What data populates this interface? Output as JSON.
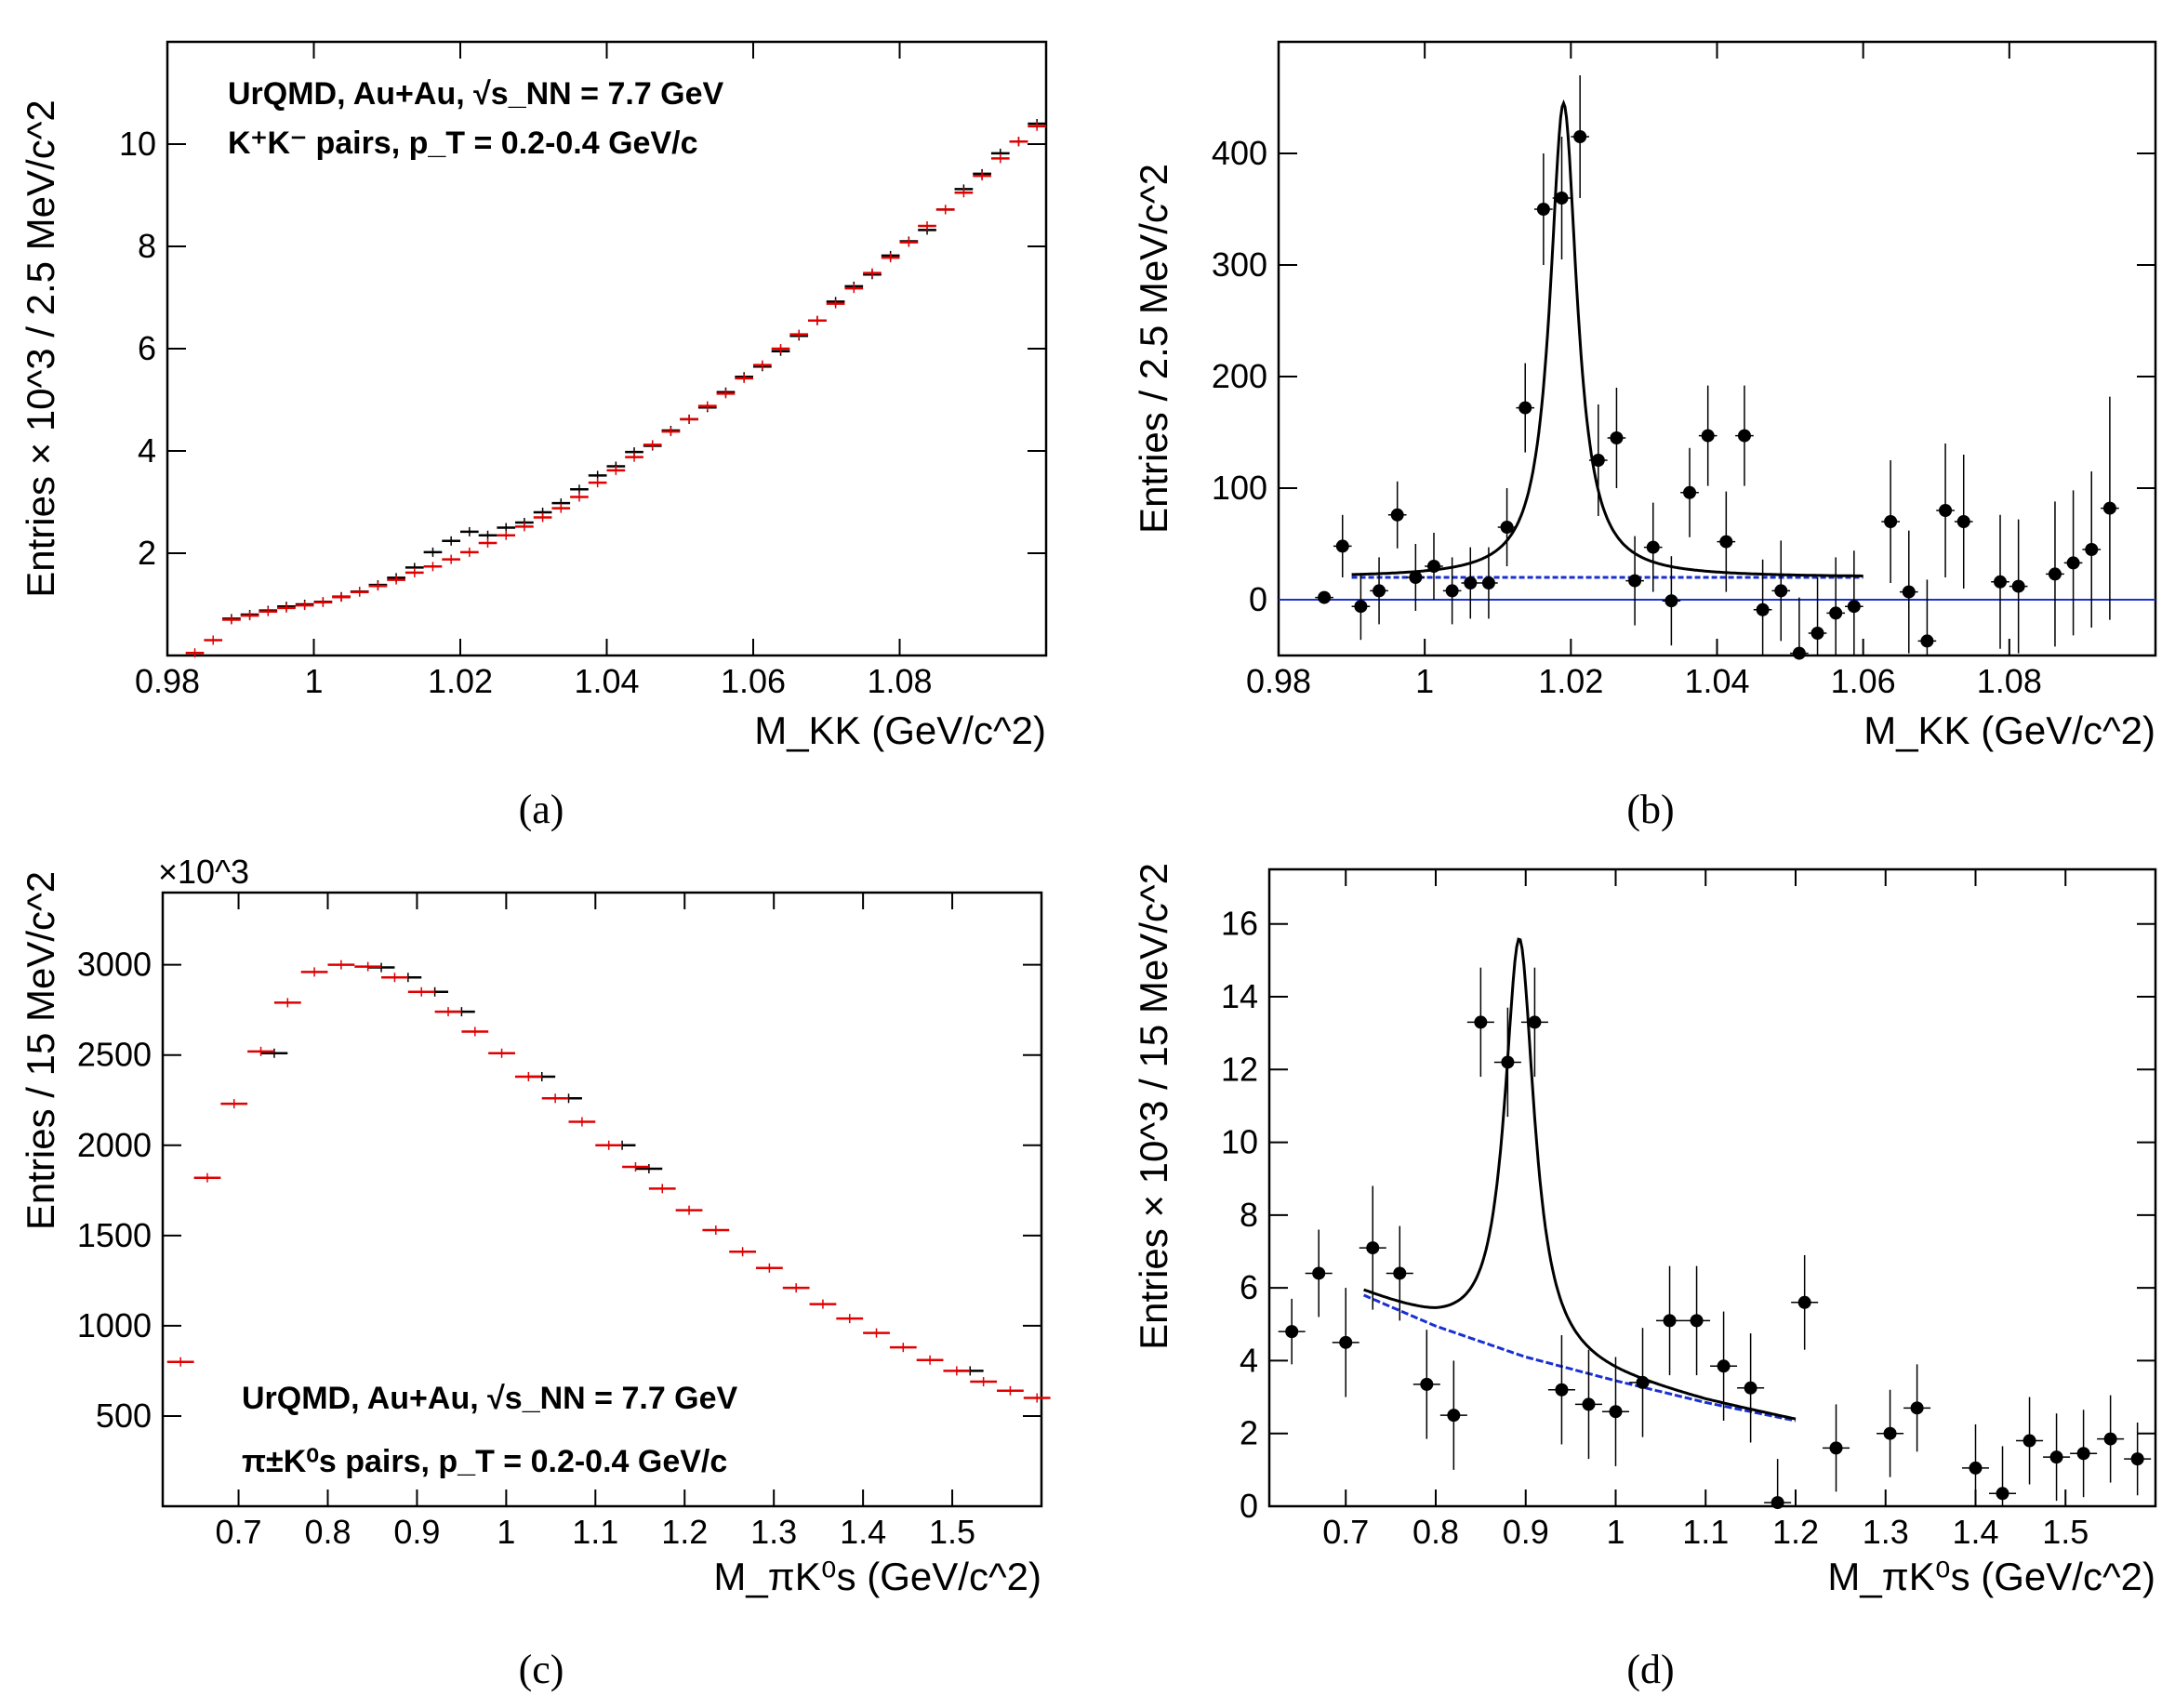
{
  "chart_data": [
    {
      "id": "a",
      "type": "scatter",
      "caption": "(a)",
      "title": "",
      "xlabel": "M_KK (GeV/c^2)",
      "ylabel": "Entries × 10^3 / 2.5 MeV/c^2",
      "xlim": [
        0.98,
        1.1
      ],
      "ylim": [
        0,
        12.0
      ],
      "xticks": [
        0.98,
        1,
        1.02,
        1.04,
        1.06,
        1.08
      ],
      "xtick_labels": [
        "0.98",
        "1",
        "1.02",
        "1.04",
        "1.06",
        "1.08"
      ],
      "yticks": [
        2,
        4,
        6,
        8,
        10
      ],
      "ytick_labels": [
        "2",
        "4",
        "6",
        "8",
        "10"
      ],
      "annotations": [
        "UrQMD, Au+Au, √s_NN = 7.7 GeV",
        "K⁺K⁻ pairs, p_T = 0.2-0.4 GeV/c"
      ],
      "bin_width": 0.0025,
      "series": [
        {
          "name": "same-event",
          "color": "#000000",
          "x": [
            0.98875,
            0.99125,
            0.99375,
            0.99625,
            0.99875,
            1.00125,
            1.00375,
            1.00625,
            1.00875,
            1.01125,
            1.01375,
            1.01625,
            1.01875,
            1.02125,
            1.02375,
            1.02625,
            1.02875,
            1.03125,
            1.03375,
            1.03625,
            1.03875,
            1.04125,
            1.04375,
            1.04625,
            1.04875,
            1.05125,
            1.05375,
            1.05625,
            1.05875,
            1.06125,
            1.06375,
            1.06625,
            1.06875,
            1.07125,
            1.07375,
            1.07625,
            1.07875,
            1.08125,
            1.08375,
            1.08625,
            1.08875,
            1.09125,
            1.09375,
            1.09625,
            1.09875
          ],
          "y": [
            0.72,
            0.8,
            0.88,
            0.96,
            1.0,
            1.05,
            1.15,
            1.25,
            1.38,
            1.52,
            1.72,
            2.02,
            2.24,
            2.42,
            2.35,
            2.5,
            2.6,
            2.8,
            2.98,
            3.25,
            3.52,
            3.7,
            3.98,
            4.1,
            4.4,
            4.62,
            4.85,
            5.15,
            5.45,
            5.65,
            5.95,
            6.25,
            6.55,
            6.92,
            7.22,
            7.45,
            7.82,
            8.1,
            8.32,
            8.72,
            9.12,
            9.42,
            9.82,
            10.05,
            10.4
          ]
        },
        {
          "name": "mixed-event",
          "color": "#e00000",
          "x": [
            0.98375,
            0.98625,
            0.98875,
            0.99125,
            0.99375,
            0.99625,
            0.99875,
            1.00125,
            1.00375,
            1.00625,
            1.00875,
            1.01125,
            1.01375,
            1.01625,
            1.01875,
            1.02125,
            1.02375,
            1.02625,
            1.02875,
            1.03125,
            1.03375,
            1.03625,
            1.03875,
            1.04125,
            1.04375,
            1.04625,
            1.04875,
            1.05125,
            1.05375,
            1.05625,
            1.05875,
            1.06125,
            1.06375,
            1.06625,
            1.06875,
            1.07125,
            1.07375,
            1.07625,
            1.07875,
            1.08125,
            1.08375,
            1.08625,
            1.08875,
            1.09125,
            1.09375,
            1.09625,
            1.09875
          ],
          "y": [
            0.05,
            0.3,
            0.7,
            0.78,
            0.86,
            0.93,
            0.98,
            1.04,
            1.14,
            1.24,
            1.36,
            1.48,
            1.62,
            1.74,
            1.88,
            2.02,
            2.2,
            2.35,
            2.52,
            2.7,
            2.88,
            3.1,
            3.38,
            3.62,
            3.88,
            4.12,
            4.38,
            4.62,
            4.88,
            5.12,
            5.42,
            5.68,
            6.0,
            6.28,
            6.55,
            6.88,
            7.18,
            7.48,
            7.78,
            8.08,
            8.4,
            8.72,
            9.05,
            9.38,
            9.72,
            10.05,
            10.35
          ]
        }
      ]
    },
    {
      "id": "b",
      "type": "scatter",
      "caption": "(b)",
      "title": "",
      "xlabel": "M_KK (GeV/c^2)",
      "ylabel": "Entries / 2.5 MeV/c^2",
      "xlim": [
        0.98,
        1.1
      ],
      "ylim": [
        -50,
        500
      ],
      "xticks": [
        0.98,
        1,
        1.02,
        1.04,
        1.06,
        1.08
      ],
      "xtick_labels": [
        "0.98",
        "1",
        "1.02",
        "1.04",
        "1.06",
        "1.08"
      ],
      "yticks": [
        0,
        100,
        200,
        300,
        400
      ],
      "ytick_labels": [
        "0",
        "100",
        "200",
        "300",
        "400"
      ],
      "bin_width": 0.0025,
      "points": {
        "x": [
          0.98625,
          0.98875,
          0.99125,
          0.99375,
          0.99625,
          0.99875,
          1.00125,
          1.00375,
          1.00625,
          1.00875,
          1.01125,
          1.01375,
          1.01625,
          1.01875,
          1.02125,
          1.02375,
          1.02625,
          1.02875,
          1.03125,
          1.03375,
          1.03625,
          1.03875,
          1.04125,
          1.04375,
          1.04625,
          1.04875,
          1.05125,
          1.05375,
          1.05625,
          1.05875,
          1.06375,
          1.06625,
          1.06875,
          1.07125,
          1.07375,
          1.07875,
          1.08125,
          1.08625,
          1.08875,
          1.09125,
          1.09375
        ],
        "y": [
          2,
          48,
          -6,
          8,
          76,
          20,
          30,
          8,
          15,
          15,
          65,
          172,
          350,
          360,
          415,
          125,
          145,
          17,
          47,
          -1,
          96,
          147,
          52,
          147,
          -9,
          8,
          -48,
          -30,
          -12,
          -6,
          70,
          7,
          -37,
          80,
          70,
          16,
          12,
          23,
          33,
          45,
          82
        ],
        "err": [
          0,
          28,
          30,
          30,
          30,
          30,
          30,
          30,
          32,
          32,
          35,
          40,
          50,
          55,
          55,
          50,
          45,
          40,
          40,
          40,
          40,
          45,
          45,
          45,
          45,
          45,
          50,
          50,
          50,
          50,
          55,
          55,
          55,
          60,
          60,
          60,
          60,
          65,
          65,
          70,
          100
        ]
      },
      "fit": {
        "type": "breit-wigner + linear",
        "peak_mass": 1.019,
        "width": 0.0045,
        "background": 20,
        "range": [
          0.99,
          1.06
        ],
        "peak_height": 445
      },
      "background_line": {
        "color": "#1a2fd1",
        "value": 20,
        "range": [
          0.99,
          1.06
        ]
      },
      "zero_line": {
        "color": "#1a2fd1",
        "value": 0
      }
    },
    {
      "id": "c",
      "type": "scatter",
      "caption": "(c)",
      "title": "",
      "xlabel": "M_πK⁰s (GeV/c^2)",
      "ylabel": "Entries / 15 MeV/c^2",
      "multiplier": "×10^3",
      "xlim": [
        0.615,
        1.6
      ],
      "ylim": [
        0,
        3400
      ],
      "xticks": [
        0.7,
        0.8,
        0.9,
        1,
        1.1,
        1.2,
        1.3,
        1.4,
        1.5
      ],
      "xtick_labels": [
        "0.7",
        "0.8",
        "0.9",
        "1",
        "1.1",
        "1.2",
        "1.3",
        "1.4",
        "1.5"
      ],
      "yticks": [
        500,
        1000,
        1500,
        2000,
        2500,
        3000
      ],
      "ytick_labels": [
        "500",
        "1000",
        "1500",
        "2000",
        "2500",
        "3000"
      ],
      "annotations": [
        "UrQMD, Au+Au, √s_NN = 7.7 GeV",
        "π±K⁰s pairs, p_T = 0.2-0.4 GeV/c"
      ],
      "bin_width": 0.03,
      "series": [
        {
          "name": "same-event",
          "color": "#000000",
          "x": [
            0.74,
            0.86,
            0.89,
            0.92,
            0.95,
            1.04,
            1.07,
            1.13,
            1.16,
            1.52
          ],
          "y": [
            2510,
            2985,
            2930,
            2850,
            2740,
            2380,
            2260,
            2000,
            1870,
            750
          ]
        },
        {
          "name": "mixed-event",
          "color": "#e00000",
          "x": [
            0.635,
            0.665,
            0.695,
            0.725,
            0.755,
            0.785,
            0.815,
            0.845,
            0.875,
            0.905,
            0.935,
            0.965,
            0.995,
            1.025,
            1.055,
            1.085,
            1.115,
            1.145,
            1.175,
            1.205,
            1.235,
            1.265,
            1.295,
            1.325,
            1.355,
            1.385,
            1.415,
            1.445,
            1.475,
            1.505,
            1.535,
            1.565,
            1.595
          ],
          "y": [
            800,
            1820,
            2230,
            2520,
            2790,
            2960,
            3000,
            2990,
            2930,
            2850,
            2740,
            2630,
            2510,
            2380,
            2260,
            2130,
            2000,
            1880,
            1760,
            1640,
            1530,
            1410,
            1320,
            1210,
            1120,
            1040,
            960,
            880,
            810,
            750,
            690,
            640,
            600
          ]
        }
      ]
    },
    {
      "id": "d",
      "type": "scatter",
      "caption": "(d)",
      "title": "",
      "xlabel": "M_πK⁰s (GeV/c^2)",
      "ylabel": "Entries × 10^3 / 15 MeV/c^2",
      "xlim": [
        0.615,
        1.6
      ],
      "ylim": [
        0,
        17.5
      ],
      "xticks": [
        0.7,
        0.8,
        0.9,
        1,
        1.1,
        1.2,
        1.3,
        1.4,
        1.5
      ],
      "xtick_labels": [
        "0.7",
        "0.8",
        "0.9",
        "1",
        "1.1",
        "1.2",
        "1.3",
        "1.4",
        "1.5"
      ],
      "yticks": [
        0,
        2,
        4,
        6,
        8,
        10,
        12,
        14,
        16
      ],
      "ytick_labels": [
        "0",
        "2",
        "4",
        "6",
        "8",
        "10",
        "12",
        "14",
        "16"
      ],
      "bin_width": 0.03,
      "points": {
        "x": [
          0.64,
          0.67,
          0.7,
          0.73,
          0.76,
          0.79,
          0.82,
          0.85,
          0.88,
          0.91,
          0.94,
          0.97,
          1.0,
          1.03,
          1.06,
          1.09,
          1.12,
          1.15,
          1.18,
          1.21,
          1.245,
          1.305,
          1.335,
          1.4,
          1.43,
          1.46,
          1.49,
          1.52,
          1.55,
          1.58
        ],
        "y": [
          4.8,
          6.4,
          4.5,
          7.1,
          6.4,
          3.35,
          2.5,
          13.3,
          12.2,
          13.3,
          3.2,
          2.8,
          2.6,
          3.4,
          5.1,
          5.1,
          3.85,
          3.25,
          0.1,
          5.6,
          1.6,
          2.0,
          2.7,
          1.05,
          0.35,
          1.8,
          1.35,
          1.45,
          1.85,
          1.3
        ],
        "err": [
          0.9,
          1.2,
          1.5,
          1.7,
          1.3,
          1.5,
          1.5,
          1.5,
          1.5,
          1.5,
          1.5,
          1.5,
          1.5,
          1.5,
          1.5,
          1.5,
          1.5,
          1.5,
          1.2,
          1.3,
          1.2,
          1.2,
          1.2,
          1.2,
          1.3,
          1.2,
          1.2,
          1.2,
          1.2,
          1.0
        ]
      },
      "fit": {
        "type": "breit-wigner + background",
        "peak_mass": 0.893,
        "width": 0.04,
        "peak_height": 15.6,
        "range": [
          0.72,
          1.2
        ]
      },
      "background_curve": {
        "color": "#1a2fd1",
        "range": [
          0.72,
          1.2
        ],
        "x": [
          0.72,
          0.8,
          0.9,
          1.0,
          1.1,
          1.2
        ],
        "y": [
          5.8,
          4.95,
          4.1,
          3.45,
          2.85,
          2.35
        ]
      }
    }
  ]
}
